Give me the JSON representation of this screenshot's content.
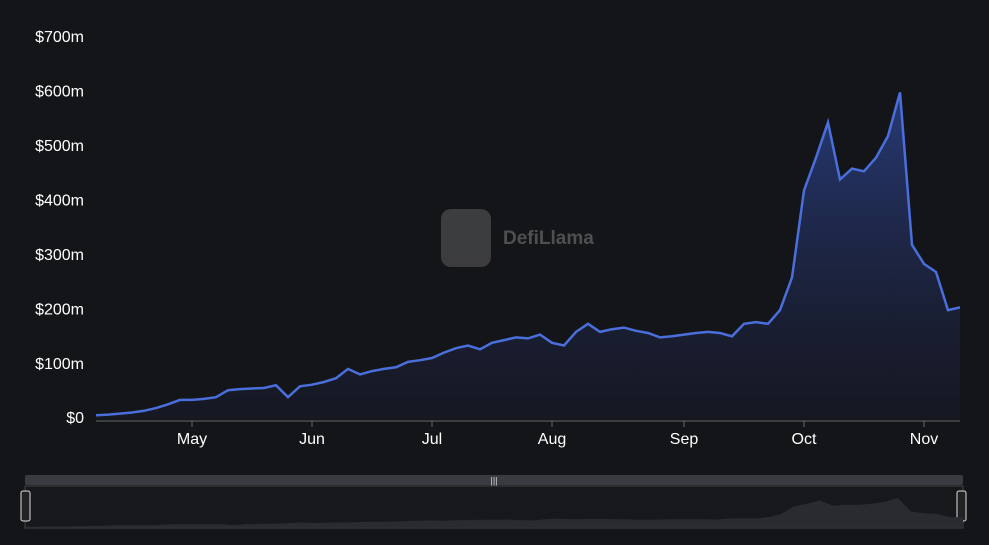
{
  "chart_data": {
    "type": "area",
    "watermark": "DefiLlama",
    "color": "#4a6fdc",
    "categories": [
      null,
      null,
      null,
      null,
      null,
      null,
      null,
      null,
      "May",
      null,
      null,
      null,
      null,
      null,
      null,
      null,
      null,
      null,
      "Jun",
      null,
      null,
      null,
      null,
      null,
      null,
      null,
      null,
      null,
      "Jul",
      null,
      null,
      null,
      null,
      null,
      null,
      null,
      null,
      null,
      "Aug",
      null,
      null,
      null,
      null,
      null,
      null,
      null,
      null,
      null,
      null,
      "Sep",
      null,
      null,
      null,
      null,
      null,
      null,
      null,
      null,
      null,
      "Oct",
      null,
      null,
      null,
      null,
      null,
      null,
      null,
      null,
      null,
      "Nov",
      null,
      null,
      null
    ],
    "values": [
      7,
      8,
      10,
      12,
      15,
      20,
      27,
      35,
      35,
      37,
      40,
      53,
      55,
      56,
      57,
      62,
      40,
      60,
      63,
      68,
      75,
      92,
      82,
      88,
      92,
      95,
      105,
      108,
      112,
      122,
      130,
      135,
      128,
      140,
      145,
      150,
      148,
      155,
      140,
      135,
      160,
      175,
      160,
      165,
      168,
      162,
      158,
      150,
      152,
      155,
      158,
      160,
      158,
      152,
      175,
      178,
      175,
      200,
      260,
      420,
      480,
      545,
      440,
      460,
      455,
      480,
      520,
      600,
      320,
      285,
      270,
      200,
      205
    ],
    "ylim": [
      0,
      700
    ],
    "yticks": [
      {
        "value": 0,
        "label": "$0"
      },
      {
        "value": 100,
        "label": "$100m"
      },
      {
        "value": 200,
        "label": "$200m"
      },
      {
        "value": 300,
        "label": "$300m"
      },
      {
        "value": 400,
        "label": "$400m"
      },
      {
        "value": 500,
        "label": "$500m"
      },
      {
        "value": 600,
        "label": "$600m"
      },
      {
        "value": 700,
        "label": "$700m"
      }
    ]
  }
}
